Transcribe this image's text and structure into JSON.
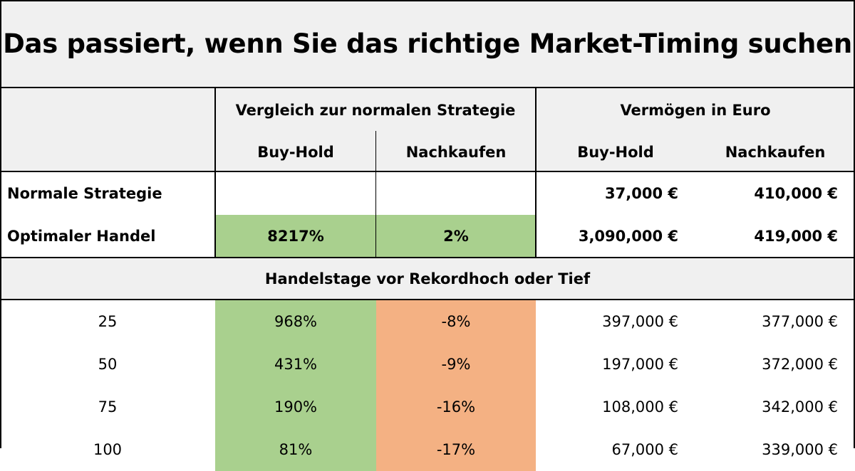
{
  "title": "Das passiert, wenn Sie das richtige Market-Timing suchen",
  "header": {
    "group_compare": "Vergleich zur normalen Strategie",
    "group_wealth": "Vermögen in Euro",
    "col_buyhold": "Buy-Hold",
    "col_nachkaufen": "Nachkaufen",
    "col_buyhold_wealth": "Buy-Hold",
    "col_nachkaufen_wealth": "Nachkaufen"
  },
  "top_rows": [
    {
      "label": "Normale Strategie",
      "cmp_buyhold": "",
      "cmp_nachkaufen": "",
      "w_buyhold": "37,000 €",
      "w_nachkaufen": "410,000 €"
    },
    {
      "label": "Optimaler Handel",
      "cmp_buyhold": "8217%",
      "cmp_nachkaufen": "2%",
      "w_buyhold": "3,090,000 €",
      "w_nachkaufen": "419,000 €"
    }
  ],
  "section_title": "Handelstage vor Rekordhoch oder Tief",
  "rows": [
    {
      "days": "25",
      "cmp_buyhold": "968%",
      "cmp_nachkaufen": "-8%",
      "w_buyhold": "397,000 €",
      "w_nachkaufen": "377,000 €"
    },
    {
      "days": "50",
      "cmp_buyhold": "431%",
      "cmp_nachkaufen": "-9%",
      "w_buyhold": "197,000 €",
      "w_nachkaufen": "372,000 €"
    },
    {
      "days": "75",
      "cmp_buyhold": "190%",
      "cmp_nachkaufen": "-16%",
      "w_buyhold": "108,000 €",
      "w_nachkaufen": "342,000 €"
    },
    {
      "days": "100",
      "cmp_buyhold": "81%",
      "cmp_nachkaufen": "-17%",
      "w_buyhold": "67,000 €",
      "w_nachkaufen": "339,000 €"
    }
  ],
  "colors": {
    "positive": "#a9d08e",
    "negative": "#f4b183",
    "header_bg": "#f0f0f0"
  }
}
